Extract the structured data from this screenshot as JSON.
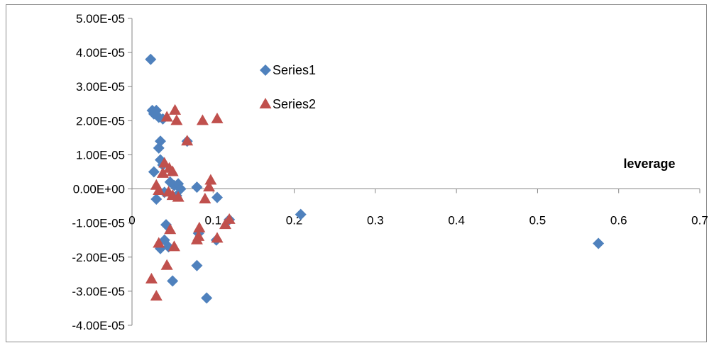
{
  "chart_data": {
    "type": "scatter",
    "xlabel": "leverage",
    "ylabel": "",
    "xlim": [
      0,
      0.7
    ],
    "ylim": [
      -4e-05,
      5e-05
    ],
    "x_ticks": [
      0,
      0.1,
      0.2,
      0.3,
      0.4,
      0.5,
      0.6,
      0.7
    ],
    "x_tick_labels": [
      "0",
      "0.1",
      "0.2",
      "0.3",
      "0.4",
      "0.5",
      "0.6",
      "0.7"
    ],
    "y_ticks": [
      5e-05,
      4e-05,
      3e-05,
      2e-05,
      1e-05,
      0,
      -1e-05,
      -2e-05,
      -3e-05,
      -4e-05
    ],
    "y_tick_labels": [
      "5.00E-05",
      "4.00E-05",
      "3.00E-05",
      "2.00E-05",
      "1.00E-05",
      "0.00E+00",
      "-1.00E-05",
      "-2.00E-05",
      "-3.00E-05",
      "-4.00E-05"
    ],
    "grid": false,
    "legend_position": "top-left",
    "series": [
      {
        "name": "Series1",
        "marker": "diamond",
        "color": "#4F81BD",
        "points": [
          [
            0.023,
            3.8e-05
          ],
          [
            0.025,
            2.3e-05
          ],
          [
            0.027,
            2.2e-05
          ],
          [
            0.03,
            2.3e-05
          ],
          [
            0.033,
            2.1e-05
          ],
          [
            0.038,
            2.05e-05
          ],
          [
            0.035,
            1.4e-05
          ],
          [
            0.033,
            1.2e-05
          ],
          [
            0.035,
            8.5e-06
          ],
          [
            0.038,
            7e-06
          ],
          [
            0.027,
            5e-06
          ],
          [
            0.03,
            -3e-06
          ],
          [
            0.04,
            -1e-06
          ],
          [
            0.047,
            2e-06
          ],
          [
            0.052,
            1e-06
          ],
          [
            0.057,
            1.5e-06
          ],
          [
            0.06,
            0.0
          ],
          [
            0.055,
            -2e-06
          ],
          [
            0.068,
            1.4e-05
          ],
          [
            0.042,
            -1.05e-05
          ],
          [
            0.04,
            -1.5e-05
          ],
          [
            0.045,
            -1.7e-05
          ],
          [
            0.035,
            -1.75e-05
          ],
          [
            0.05,
            -2.7e-05
          ],
          [
            0.08,
            5e-07
          ],
          [
            0.082,
            -1.3e-05
          ],
          [
            0.08,
            -2.25e-05
          ],
          [
            0.092,
            -3.2e-05
          ],
          [
            0.105,
            -2.5e-06
          ],
          [
            0.104,
            -1.5e-05
          ],
          [
            0.12,
            -9e-06
          ],
          [
            0.208,
            -7.5e-06
          ],
          [
            0.575,
            -1.6e-05
          ]
        ]
      },
      {
        "name": "Series2",
        "marker": "triangle",
        "color": "#C0504D",
        "points": [
          [
            0.043,
            2.1e-05
          ],
          [
            0.053,
            2.3e-05
          ],
          [
            0.055,
            2e-05
          ],
          [
            0.087,
            2e-05
          ],
          [
            0.105,
            2.05e-05
          ],
          [
            0.068,
            1.4e-05
          ],
          [
            0.04,
            7.5e-06
          ],
          [
            0.046,
            6e-06
          ],
          [
            0.05,
            5e-06
          ],
          [
            0.038,
            4.5e-06
          ],
          [
            0.03,
            1e-06
          ],
          [
            0.033,
            -5e-07
          ],
          [
            0.045,
            -1e-06
          ],
          [
            0.05,
            -2e-06
          ],
          [
            0.057,
            -2.5e-06
          ],
          [
            0.09,
            -3e-06
          ],
          [
            0.095,
            5e-07
          ],
          [
            0.097,
            2.5e-06
          ],
          [
            0.047,
            -1.2e-05
          ],
          [
            0.083,
            -1.15e-05
          ],
          [
            0.082,
            -1.4e-05
          ],
          [
            0.08,
            -1.5e-05
          ],
          [
            0.052,
            -1.7e-05
          ],
          [
            0.033,
            -1.6e-05
          ],
          [
            0.105,
            -1.45e-05
          ],
          [
            0.115,
            -1.05e-05
          ],
          [
            0.12,
            -9e-06
          ],
          [
            0.043,
            -2.25e-05
          ],
          [
            0.024,
            -2.65e-05
          ],
          [
            0.03,
            -3.15e-05
          ]
        ]
      }
    ]
  }
}
